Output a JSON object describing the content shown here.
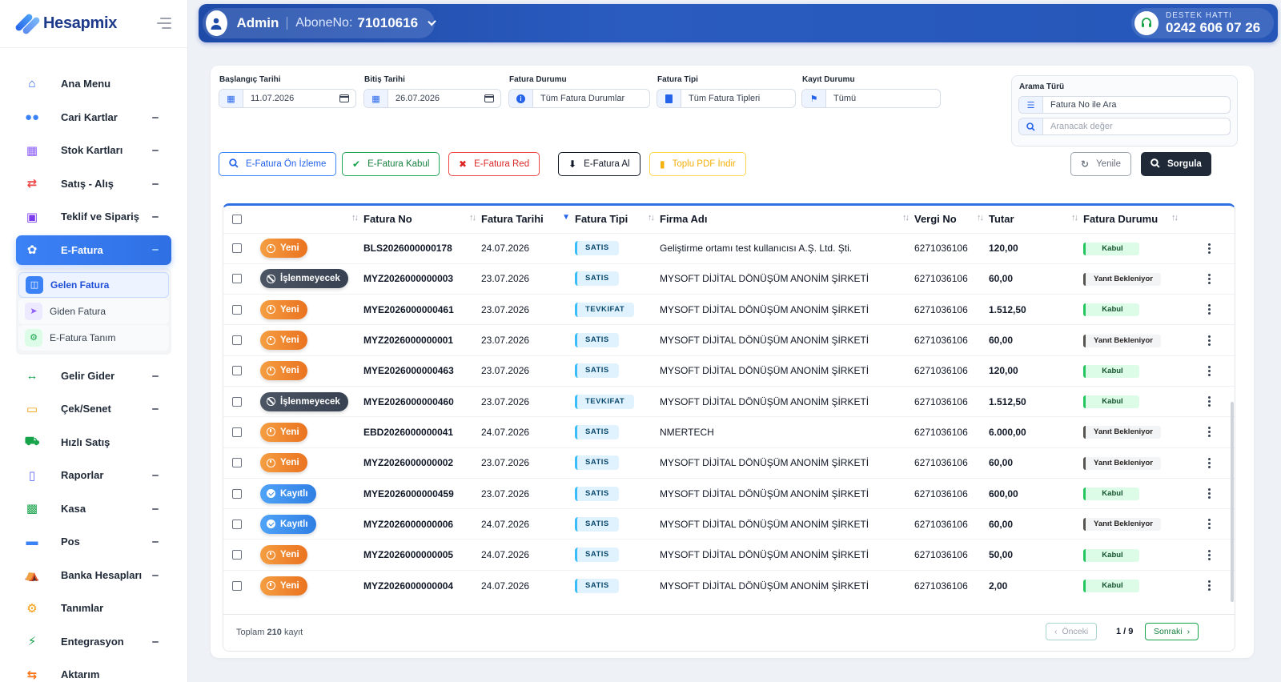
{
  "brand": {
    "name": "Hesapmix"
  },
  "sidebar": {
    "items": [
      {
        "label": "Ana Menu",
        "icon": "home-icon",
        "color": "#2563eb",
        "expandable": false
      },
      {
        "label": "Cari Kartlar",
        "icon": "users-icon",
        "color": "#3b82f6",
        "expandable": true
      },
      {
        "label": "Stok Kartları",
        "icon": "boxes-icon",
        "color": "#8b5cf6",
        "expandable": true
      },
      {
        "label": "Satış - Alış",
        "icon": "exchange-icon",
        "color": "#ef4444",
        "expandable": true
      },
      {
        "label": "Teklif ve Sipariş",
        "icon": "clipboard-icon",
        "color": "#7c3aed",
        "expandable": true
      },
      {
        "label": "E-Fatura",
        "icon": "leaf-icon",
        "color": "#ffffff",
        "expandable": true,
        "active": true
      },
      {
        "label": "Gelir Gider",
        "icon": "arrows-icon",
        "color": "#16a34a",
        "expandable": true
      },
      {
        "label": "Çek/Senet",
        "icon": "card-icon",
        "color": "#f59e0b",
        "expandable": true
      },
      {
        "label": "Hızlı Satış",
        "icon": "cart-icon",
        "color": "#16a34a",
        "expandable": false
      },
      {
        "label": "Raporlar",
        "icon": "signal-icon",
        "color": "#6366f1",
        "expandable": true
      },
      {
        "label": "Kasa",
        "icon": "briefcase-icon",
        "color": "#16a34a",
        "expandable": true
      },
      {
        "label": "Pos",
        "icon": "pos-card-icon",
        "color": "#3b82f6",
        "expandable": true
      },
      {
        "label": "Banka Hesapları",
        "icon": "bank-icon",
        "color": "#3b82f6",
        "expandable": true
      },
      {
        "label": "Tanımlar",
        "icon": "gears-icon",
        "color": "#f59e0b",
        "expandable": false
      },
      {
        "label": "Entegrasyon",
        "icon": "plug-icon",
        "color": "#16a34a",
        "expandable": true
      },
      {
        "label": "Aktarım",
        "icon": "transfer-icon",
        "color": "#f97316",
        "expandable": false
      }
    ],
    "submenu": [
      {
        "label": "Gelen Fatura",
        "icon": "inbox-icon",
        "active": true
      },
      {
        "label": "Giden Fatura",
        "icon": "send-icon",
        "active": false
      },
      {
        "label": "E-Fatura Tanım",
        "icon": "cog-icon",
        "active": false
      }
    ]
  },
  "header": {
    "user": "Admin",
    "abone_label": "AboneNo:",
    "abone_no": "71010616",
    "support_label": "DESTEK HATTI",
    "support_phone": "0242 606 07 26"
  },
  "filters": {
    "start_label": "Başlangıç Tarihi",
    "start_value": "11.07.2026",
    "end_label": "Bitiş Tarihi",
    "end_value": "26.07.2026",
    "status_label": "Fatura Durumu",
    "status_value": "Tüm Fatura Durumlar",
    "type_label": "Fatura Tipi",
    "type_value": "Tüm Fatura Tipleri",
    "record_label": "Kayıt Durumu",
    "record_value": "Tümü",
    "search_type_label": "Arama Türü",
    "search_type_value": "Fatura No ile Ara",
    "search_placeholder": "Aranacak değer"
  },
  "actions": {
    "preview": "E-Fatura Ön İzleme",
    "accept": "E-Fatura Kabul",
    "reject": "E-Fatura Red",
    "fetch": "E-Fatura Al",
    "bulk_pdf": "Toplu PDF İndir",
    "refresh": "Yenile",
    "query": "Sorgula"
  },
  "table": {
    "columns": {
      "no": "Fatura No",
      "date": "Fatura Tarihi",
      "type": "Fatura Tipi",
      "firm": "Firma Adı",
      "tax": "Vergi No",
      "amount": "Tutar",
      "state": "Fatura Durumu"
    },
    "rows": [
      {
        "status": "Yeni",
        "no": "BLS2026000000178",
        "date": "24.07.2026",
        "type": "SATIS",
        "firm": "Geliştirme ortamı test kullanıcısı A.Ş. Ltd. Şti.",
        "tax": "6271036106",
        "amount": "120,00",
        "state": "Kabul"
      },
      {
        "status": "İşlenmeyecek",
        "no": "MYZ2026000000003",
        "date": "23.07.2026",
        "type": "SATIS",
        "firm": "MYSOFT DİJİTAL DÖNÜŞÜM ANONİM ŞİRKETİ",
        "tax": "6271036106",
        "amount": "60,00",
        "state": "Yanıt Bekleniyor"
      },
      {
        "status": "Yeni",
        "no": "MYE2026000000461",
        "date": "23.07.2026",
        "type": "TEVKIFAT",
        "firm": "MYSOFT DİJİTAL DÖNÜŞÜM ANONİM ŞİRKETİ",
        "tax": "6271036106",
        "amount": "1.512,50",
        "state": "Kabul"
      },
      {
        "status": "Yeni",
        "no": "MYZ2026000000001",
        "date": "23.07.2026",
        "type": "SATIS",
        "firm": "MYSOFT DİJİTAL DÖNÜŞÜM ANONİM ŞİRKETİ",
        "tax": "6271036106",
        "amount": "60,00",
        "state": "Yanıt Bekleniyor"
      },
      {
        "status": "Yeni",
        "no": "MYE2026000000463",
        "date": "23.07.2026",
        "type": "SATIS",
        "firm": "MYSOFT DİJİTAL DÖNÜŞÜM ANONİM ŞİRKETİ",
        "tax": "6271036106",
        "amount": "120,00",
        "state": "Kabul"
      },
      {
        "status": "İşlenmeyecek",
        "no": "MYE2026000000460",
        "date": "23.07.2026",
        "type": "TEVKIFAT",
        "firm": "MYSOFT DİJİTAL DÖNÜŞÜM ANONİM ŞİRKETİ",
        "tax": "6271036106",
        "amount": "1.512,50",
        "state": "Kabul"
      },
      {
        "status": "Yeni",
        "no": "EBD2026000000041",
        "date": "24.07.2026",
        "type": "SATIS",
        "firm": "NMERTECH",
        "tax": "6271036106",
        "amount": "6.000,00",
        "state": "Yanıt Bekleniyor"
      },
      {
        "status": "Yeni",
        "no": "MYZ2026000000002",
        "date": "23.07.2026",
        "type": "SATIS",
        "firm": "MYSOFT DİJİTAL DÖNÜŞÜM ANONİM ŞİRKETİ",
        "tax": "6271036106",
        "amount": "60,00",
        "state": "Yanıt Bekleniyor"
      },
      {
        "status": "Kayıtlı",
        "no": "MYE2026000000459",
        "date": "23.07.2026",
        "type": "SATIS",
        "firm": "MYSOFT DİJİTAL DÖNÜŞÜM ANONİM ŞİRKETİ",
        "tax": "6271036106",
        "amount": "600,00",
        "state": "Kabul"
      },
      {
        "status": "Kayıtlı",
        "no": "MYZ2026000000006",
        "date": "24.07.2026",
        "type": "SATIS",
        "firm": "MYSOFT DİJİTAL DÖNÜŞÜM ANONİM ŞİRKETİ",
        "tax": "6271036106",
        "amount": "60,00",
        "state": "Yanıt Bekleniyor"
      },
      {
        "status": "Yeni",
        "no": "MYZ2026000000005",
        "date": "24.07.2026",
        "type": "SATIS",
        "firm": "MYSOFT DİJİTAL DÖNÜŞÜM ANONİM ŞİRKETİ",
        "tax": "6271036106",
        "amount": "50,00",
        "state": "Kabul"
      },
      {
        "status": "Yeni",
        "no": "MYZ2026000000004",
        "date": "24.07.2026",
        "type": "SATIS",
        "firm": "MYSOFT DİJİTAL DÖNÜŞÜM ANONİM ŞİRKETİ",
        "tax": "6271036106",
        "amount": "2,00",
        "state": "Kabul"
      }
    ]
  },
  "footer": {
    "total_prefix": "Toplam",
    "total_count": "210",
    "total_suffix": "kayıt",
    "prev": "Önceki",
    "page": "1 / 9",
    "next": "Sonraki"
  }
}
